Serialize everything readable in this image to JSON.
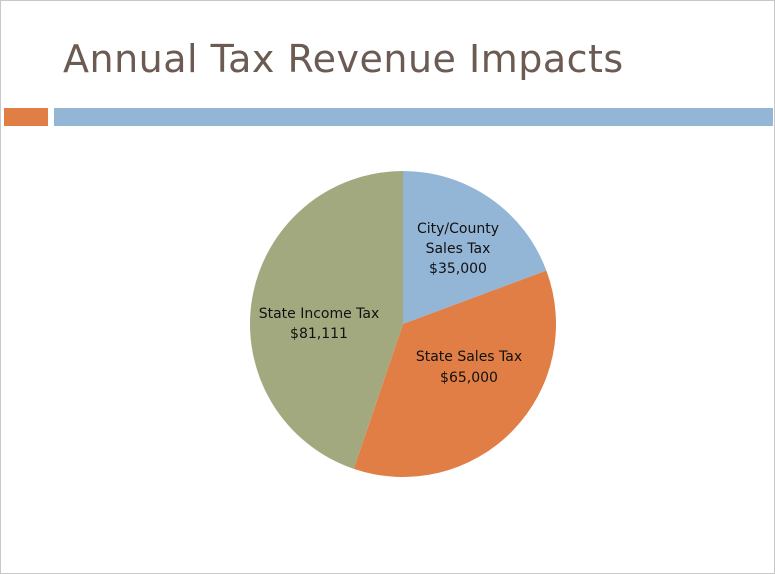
{
  "slide": {
    "title": "Annual Tax Revenue Impacts",
    "accent_colors": [
      "#e07e45",
      "#93b5d6"
    ]
  },
  "chart_data": {
    "type": "pie",
    "title": "",
    "slices": [
      {
        "label": "City/County Sales Tax",
        "value": 35000,
        "value_label": "$35,000",
        "color": "#93b5d6"
      },
      {
        "label": "State Sales Tax",
        "value": 65000,
        "value_label": "$65,000",
        "color": "#e07e45"
      },
      {
        "label": "State Income Tax",
        "value": 81111,
        "value_label": "$81,111",
        "color": "#a3a97f"
      }
    ],
    "legend": "none",
    "start_angle_deg": 0,
    "direction": "clockwise"
  }
}
